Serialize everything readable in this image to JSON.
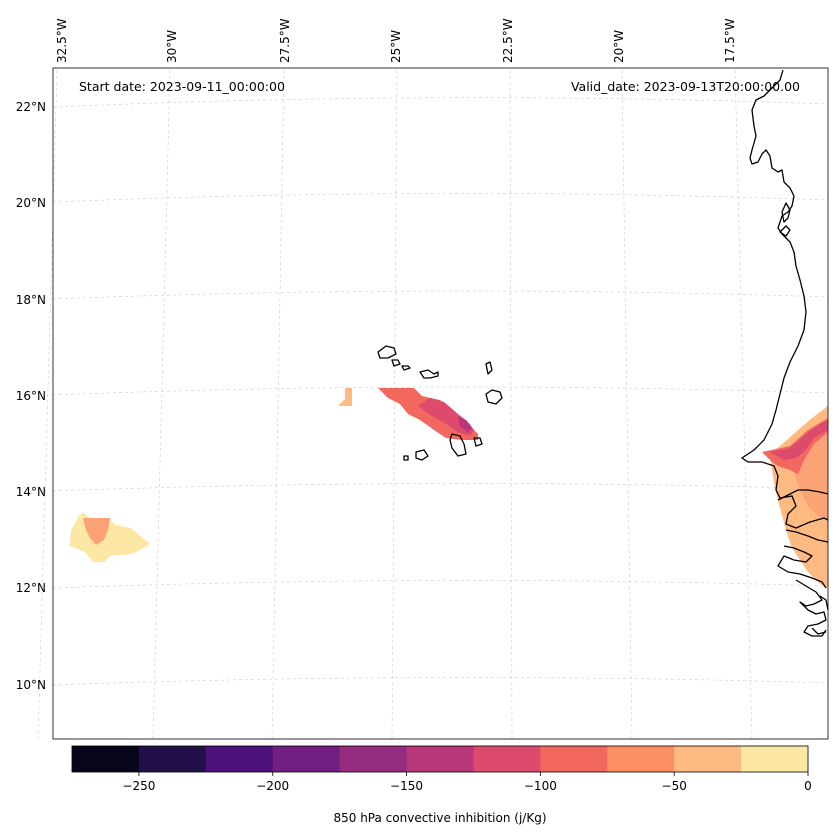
{
  "header": {
    "start_date": "Start date: 2023-09-11_00:00:00",
    "valid_date": "Valid_date: 2023-09-13T20:00:00.00"
  },
  "map": {
    "projection": "conic",
    "lon_labels": [
      "32.5°W",
      "30°W",
      "27.5°W",
      "25°W",
      "22.5°W",
      "20°W",
      "17.5°W"
    ],
    "lat_labels": [
      "22°N",
      "20°N",
      "18°N",
      "16°N",
      "14°N",
      "12°N",
      "10°N"
    ],
    "gridlines": true
  },
  "colorbar": {
    "label": "850 hPa convective inhibition (j/Kg)",
    "tick_labels": [
      "−250",
      "−200",
      "−150",
      "−100",
      "−50",
      "0"
    ],
    "range": [
      -275,
      0
    ],
    "levels": [
      -275,
      -250,
      -225,
      -200,
      -175,
      -150,
      -125,
      -100,
      -75,
      -50,
      -25,
      0
    ],
    "colors": [
      "#06051a",
      "#221048",
      "#4e117b",
      "#731f81",
      "#962c7f",
      "#b8367a",
      "#dc4b6c",
      "#f2675e",
      "#fc9063",
      "#feba80",
      "#fde7a4"
    ]
  },
  "chart_data": {
    "type": "heatmap",
    "variable": "850 hPa convective inhibition",
    "units": "j/Kg",
    "regions": [
      {
        "area": "Cape Verde islands",
        "min_value": -140,
        "max_value": -90
      },
      {
        "area": "West African coast (Senegal / Gambia / Guinea-Bissau)",
        "min_value": -120,
        "max_value": -25
      },
      {
        "area": "Open ocean near 13°N 32°W",
        "min_value": -60,
        "max_value": -10
      },
      {
        "area": "Near 16°N 26°W",
        "min_value": -40,
        "max_value": -10
      }
    ]
  }
}
